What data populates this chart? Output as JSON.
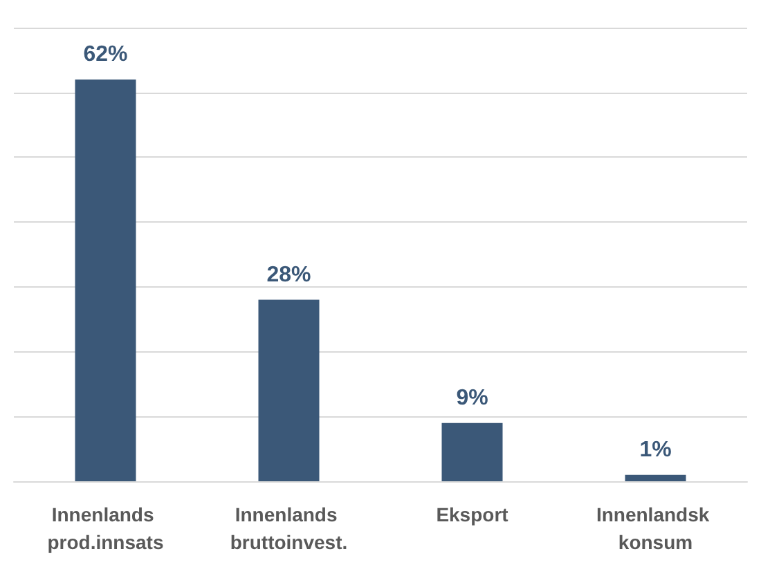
{
  "chart_data": {
    "type": "bar",
    "categories": [
      "Innenlands prod.innsats",
      "Innenlands bruttoinvest.",
      "Eksport",
      "Innenlandsk konsum"
    ],
    "values": [
      62,
      28,
      9,
      1
    ],
    "value_labels": [
      "62%",
      "28%",
      "9%",
      "1%"
    ],
    "color": "#3b5878",
    "tick_labels": "x",
    "grid": "y"
  }
}
